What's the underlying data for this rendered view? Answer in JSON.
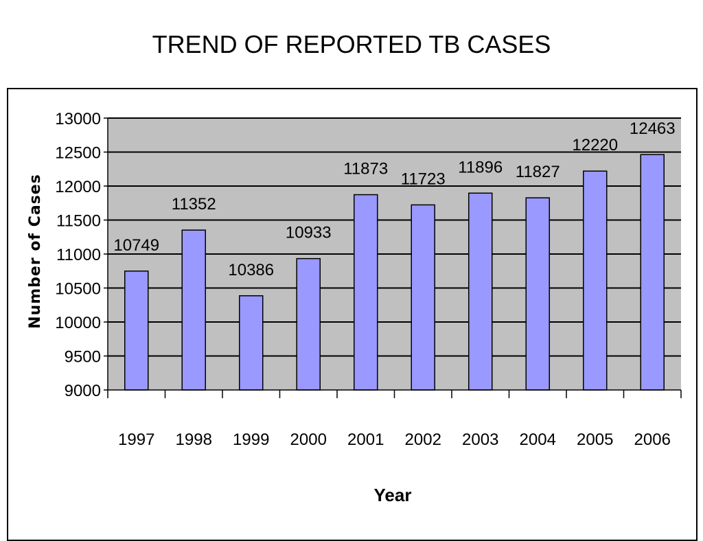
{
  "page": {
    "title": "TREND OF REPORTED TB CASES"
  },
  "colors": {
    "bar_fill": "#9999ff",
    "plot_background": "#c0c0c0",
    "gridline": "#000000"
  },
  "chart_data": {
    "type": "bar",
    "title": "TREND OF REPORTED TB CASES",
    "xlabel": "Year",
    "ylabel": "Number of Cases",
    "categories": [
      "1997",
      "1998",
      "1999",
      "2000",
      "2001",
      "2002",
      "2003",
      "2004",
      "2005",
      "2006"
    ],
    "values": [
      10749,
      11352,
      10386,
      10933,
      11873,
      11723,
      11896,
      11827,
      12220,
      12463
    ],
    "data_labels": [
      "10749",
      "11352",
      "10386",
      "10933",
      "11873",
      "11723",
      "11896",
      "11827",
      "12220",
      "12463"
    ],
    "ylim": [
      9000,
      13000
    ],
    "yticks": [
      "9000",
      "9500",
      "10000",
      "10500",
      "11000",
      "11500",
      "12000",
      "12500",
      "13000"
    ],
    "grid": true,
    "legend": "none"
  }
}
